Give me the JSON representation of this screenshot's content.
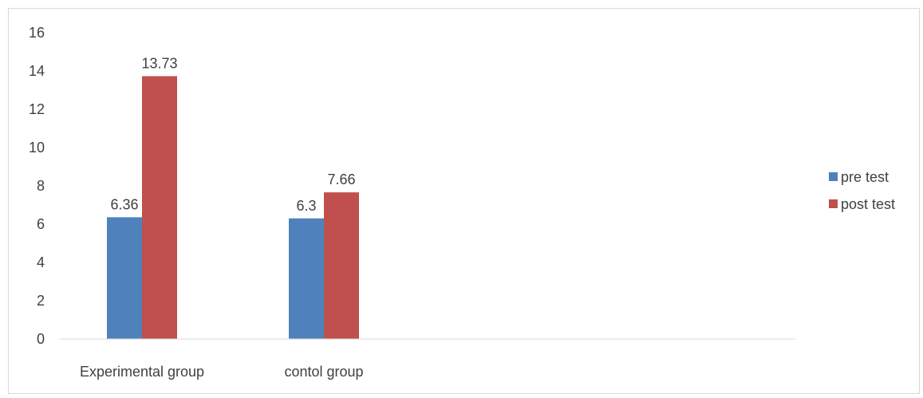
{
  "chart_data": {
    "type": "bar",
    "categories": [
      "Experimental group",
      "contol group"
    ],
    "series": [
      {
        "name": "pre test",
        "values": [
          6.36,
          6.3
        ],
        "labels": [
          "6.36",
          "6.3"
        ],
        "color": "#4f81bd"
      },
      {
        "name": "post test",
        "values": [
          13.73,
          7.66
        ],
        "labels": [
          "13.73",
          "7.66"
        ],
        "color": "#c0504d"
      }
    ],
    "ylim": [
      0,
      16
    ],
    "yticks": [
      0,
      2,
      4,
      6,
      8,
      10,
      12,
      14,
      16
    ],
    "grid": false,
    "legend_position": "right"
  }
}
